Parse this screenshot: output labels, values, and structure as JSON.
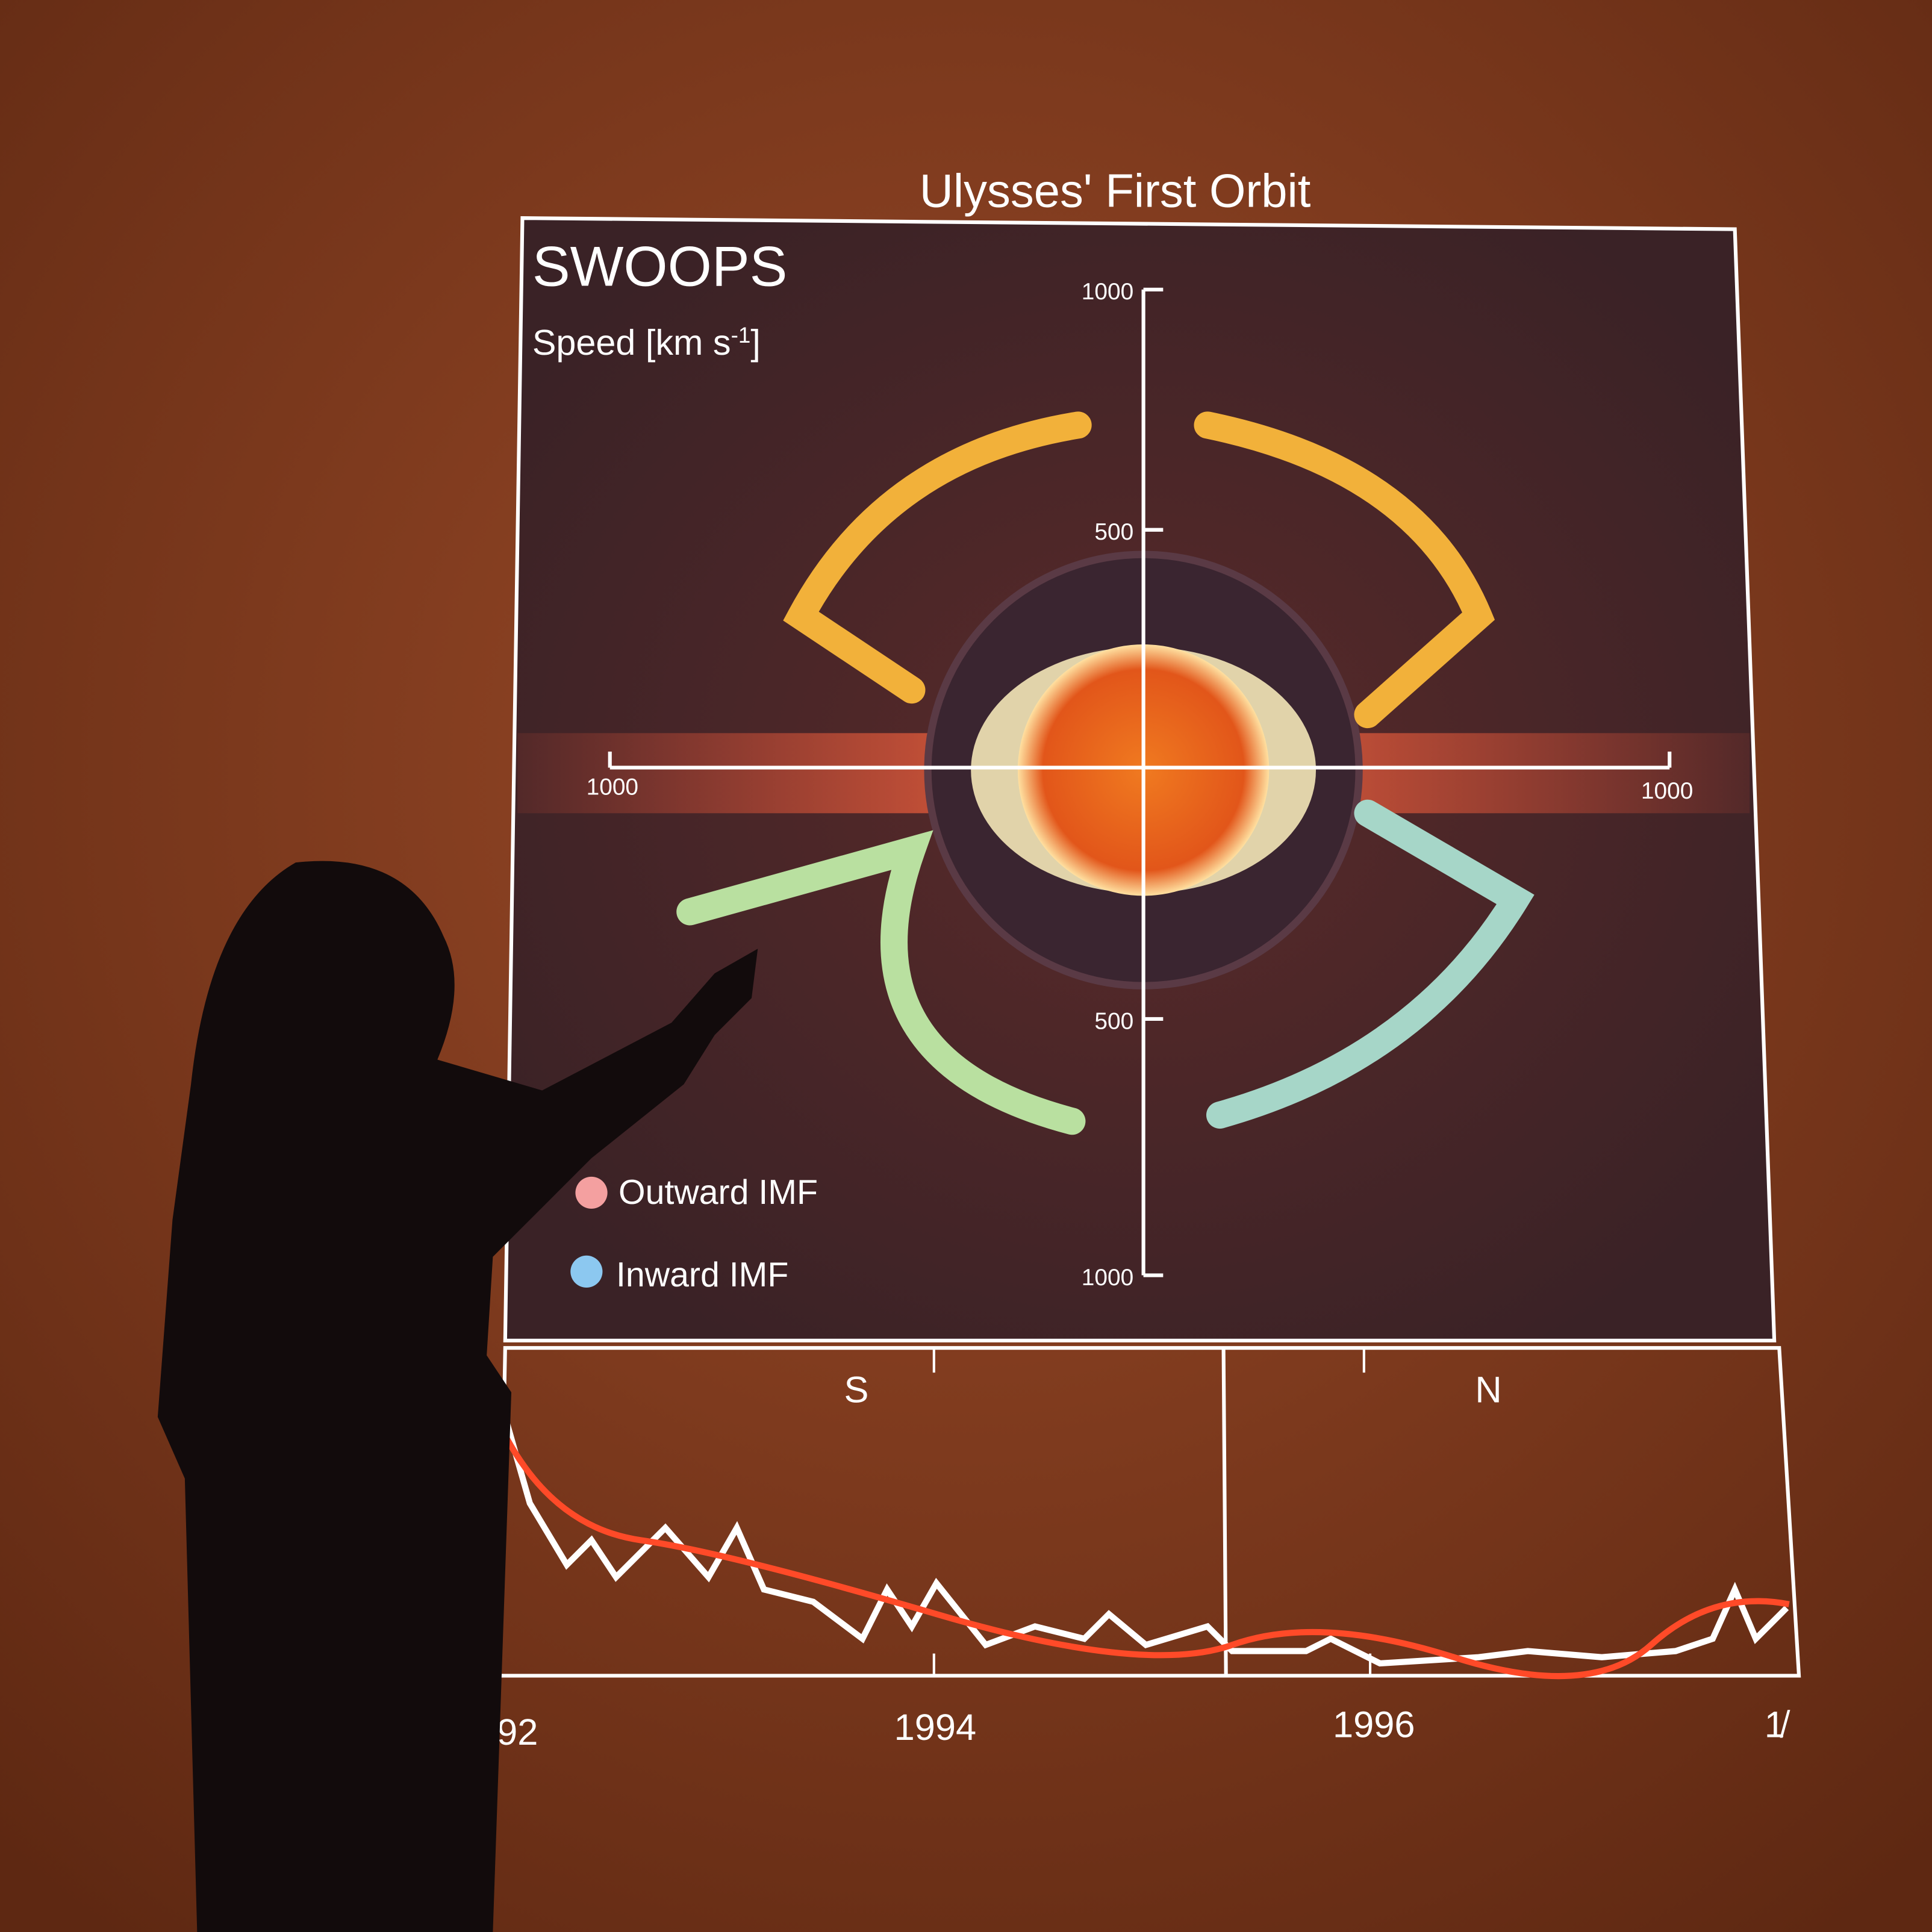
{
  "slide": {
    "title": "Ulysses' First Orbit",
    "instrument": "SWOOPS",
    "quantity": {
      "label": "Speed [km s",
      "exponent": "-1",
      "close": "]"
    },
    "polar_axis_labels": {
      "top": "1000",
      "upper_mid": "500",
      "lower_mid": "500",
      "bottom": "1000",
      "left": "1000",
      "right": "1000"
    },
    "legend": [
      "Outward IMF",
      "Inward IMF"
    ],
    "hemispheres": [
      "S",
      "N"
    ],
    "years": [
      "92",
      "1994",
      "1996",
      "1̸"
    ]
  }
}
